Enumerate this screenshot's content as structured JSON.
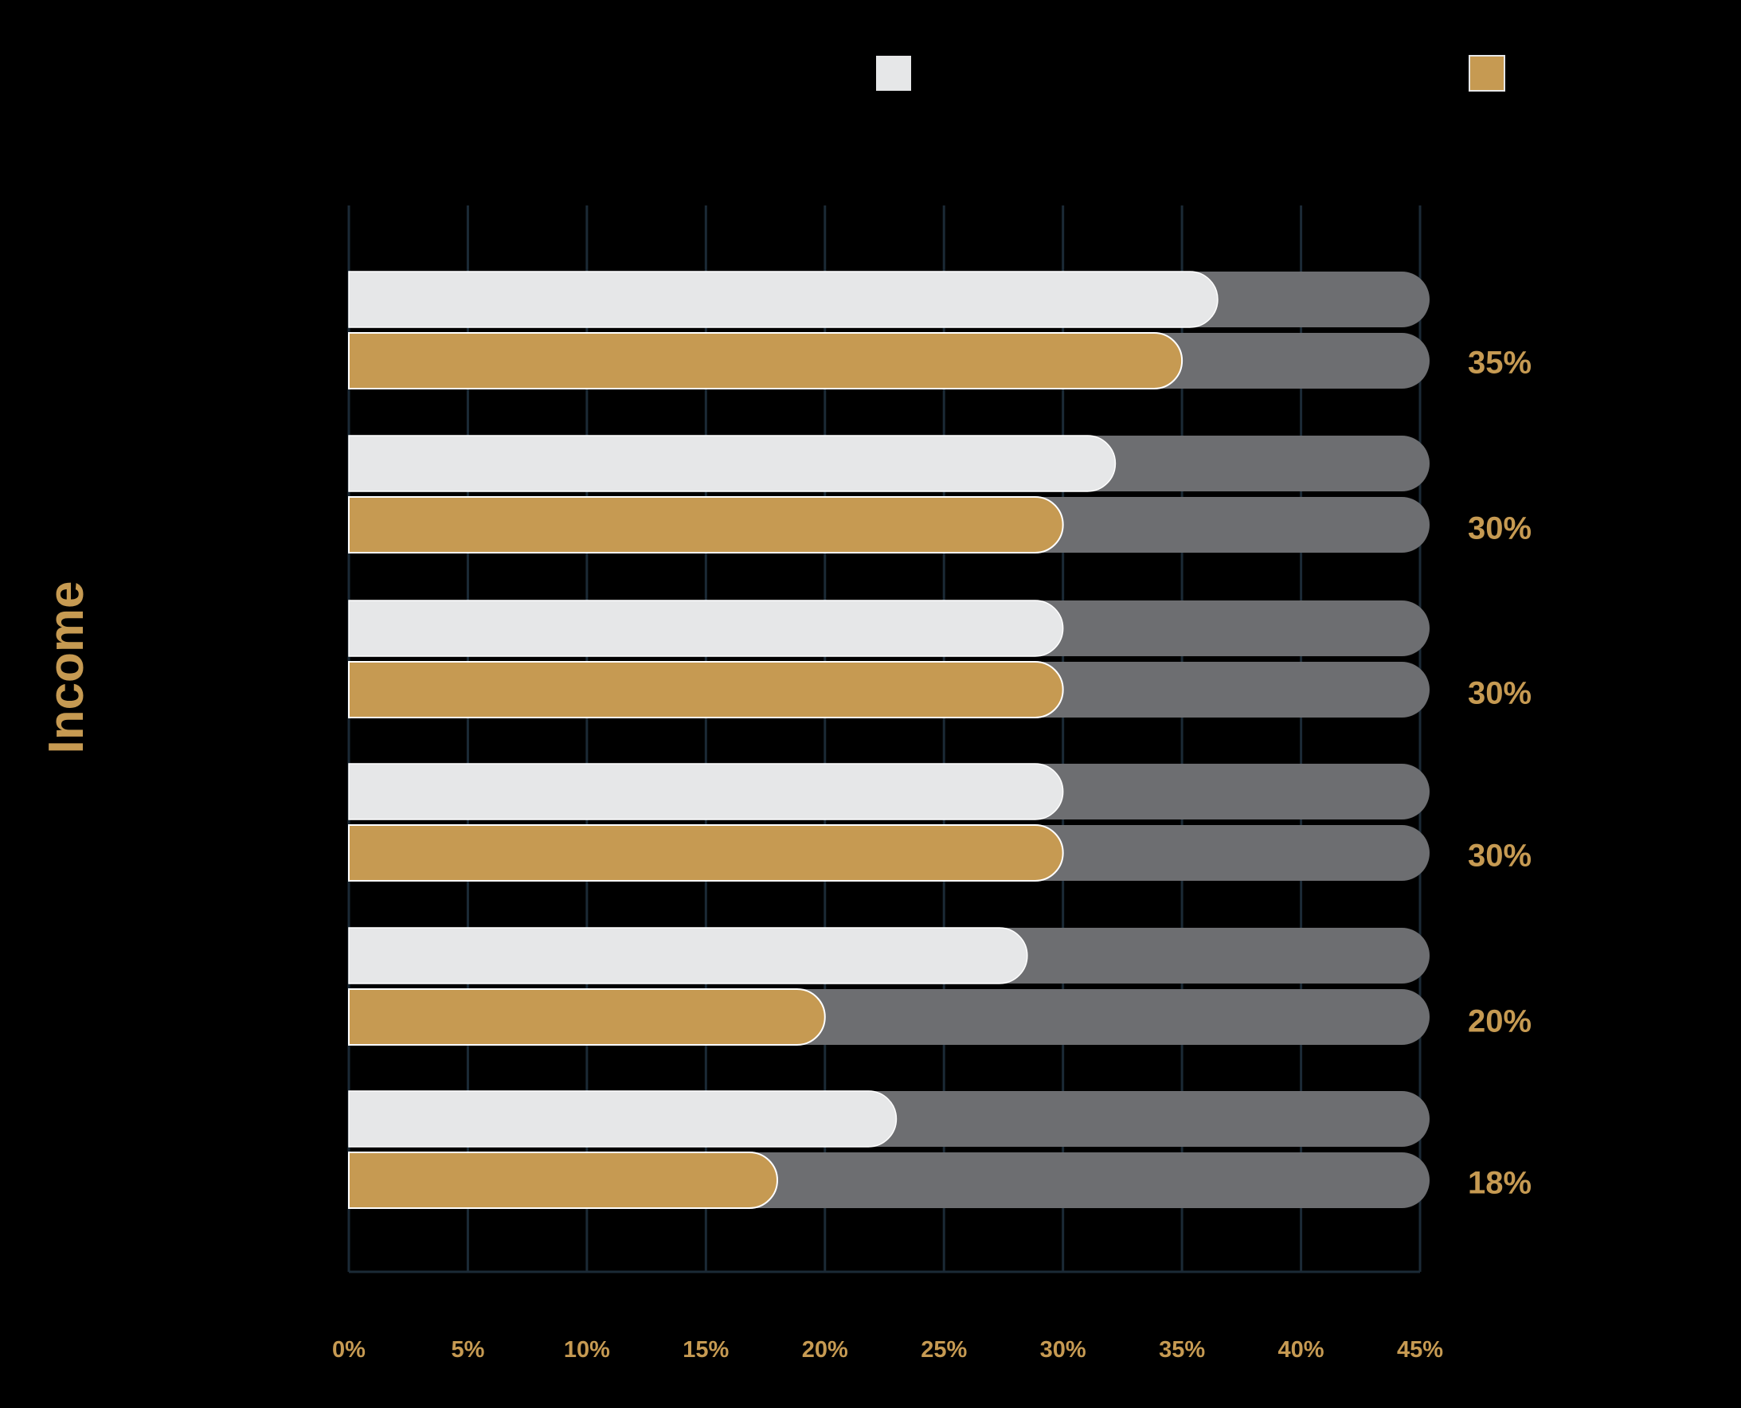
{
  "chart_data": {
    "type": "bar",
    "orientation": "horizontal",
    "ylabel": "Income",
    "xlim": [
      0,
      45
    ],
    "xticks": [
      "0%",
      "5%",
      "10%",
      "15%",
      "20%",
      "25%",
      "30%",
      "35%",
      "40%",
      "45%"
    ],
    "grid": true,
    "legend_position": "top",
    "series": [
      {
        "key": "white",
        "values": [
          36.5,
          32.2,
          30.0,
          30.0,
          28.5,
          23.0
        ]
      },
      {
        "key": "gold",
        "values": [
          35,
          30,
          30,
          30,
          20,
          18
        ],
        "labels": [
          "35%",
          "30%",
          "30%",
          "30%",
          "20%",
          "18%"
        ]
      }
    ],
    "colors": {
      "background": "#000000",
      "white_series": "#E6E7E8",
      "gold_series": "#C69A52",
      "track": "#6D6E71",
      "grid": "#1B2A36",
      "text_accent": "#C69A52"
    }
  }
}
